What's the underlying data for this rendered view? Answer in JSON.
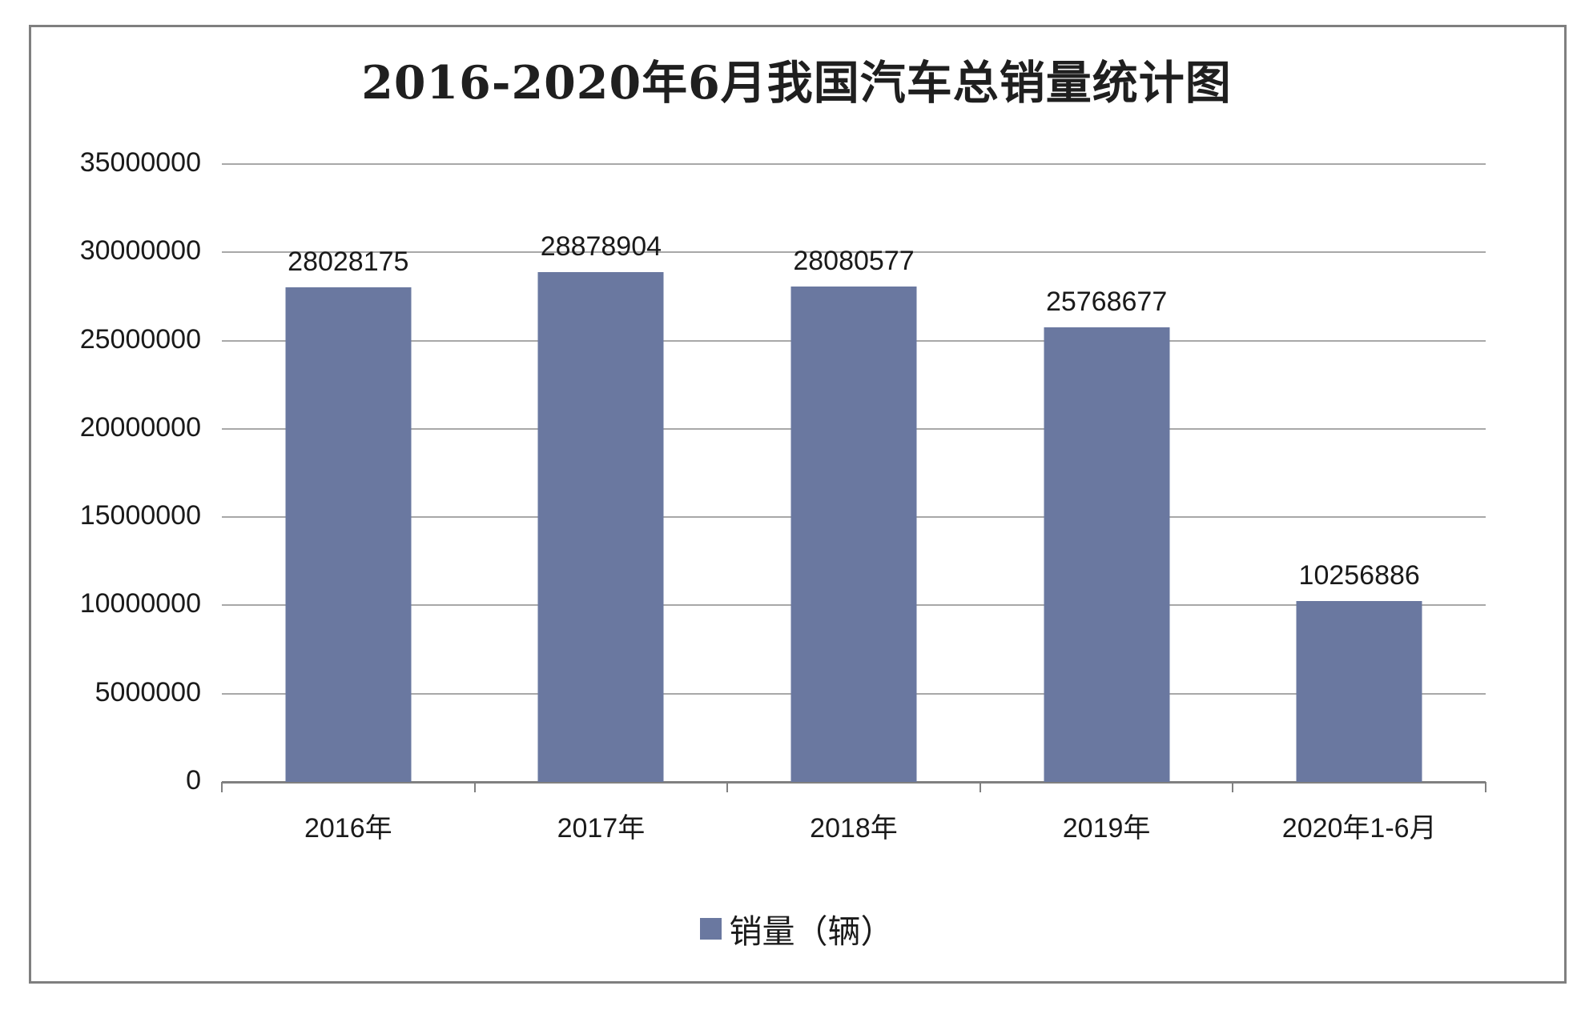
{
  "chart_data": {
    "type": "bar",
    "title": "2016-2020年6月我国汽车总销量统计图",
    "categories": [
      "2016年",
      "2017年",
      "2018年",
      "2019年",
      "2020年1-6月"
    ],
    "series": [
      {
        "name": "销量（辆）",
        "values": [
          28028175,
          28878904,
          28080577,
          25768677,
          10256886
        ]
      }
    ],
    "data_labels": [
      "28028175",
      "28878904",
      "28080577",
      "25768677",
      "10256886"
    ],
    "y_ticks": [
      "35000000",
      "30000000",
      "25000000",
      "20000000",
      "15000000",
      "10000000",
      "5000000",
      "0"
    ],
    "ylim": [
      0,
      35000000
    ],
    "y_tick_step": 5000000,
    "grid": true,
    "legend_position": "bottom",
    "xlabel": "",
    "ylabel": "",
    "colors": {
      "bar": "#6a78a0",
      "gridline": "#a8a8a8",
      "axis": "#808080",
      "border": "#7f7f7f",
      "text": "#1a1a1a"
    }
  },
  "legend": {
    "marker": "bar-color-square",
    "label": "销量（辆）"
  }
}
